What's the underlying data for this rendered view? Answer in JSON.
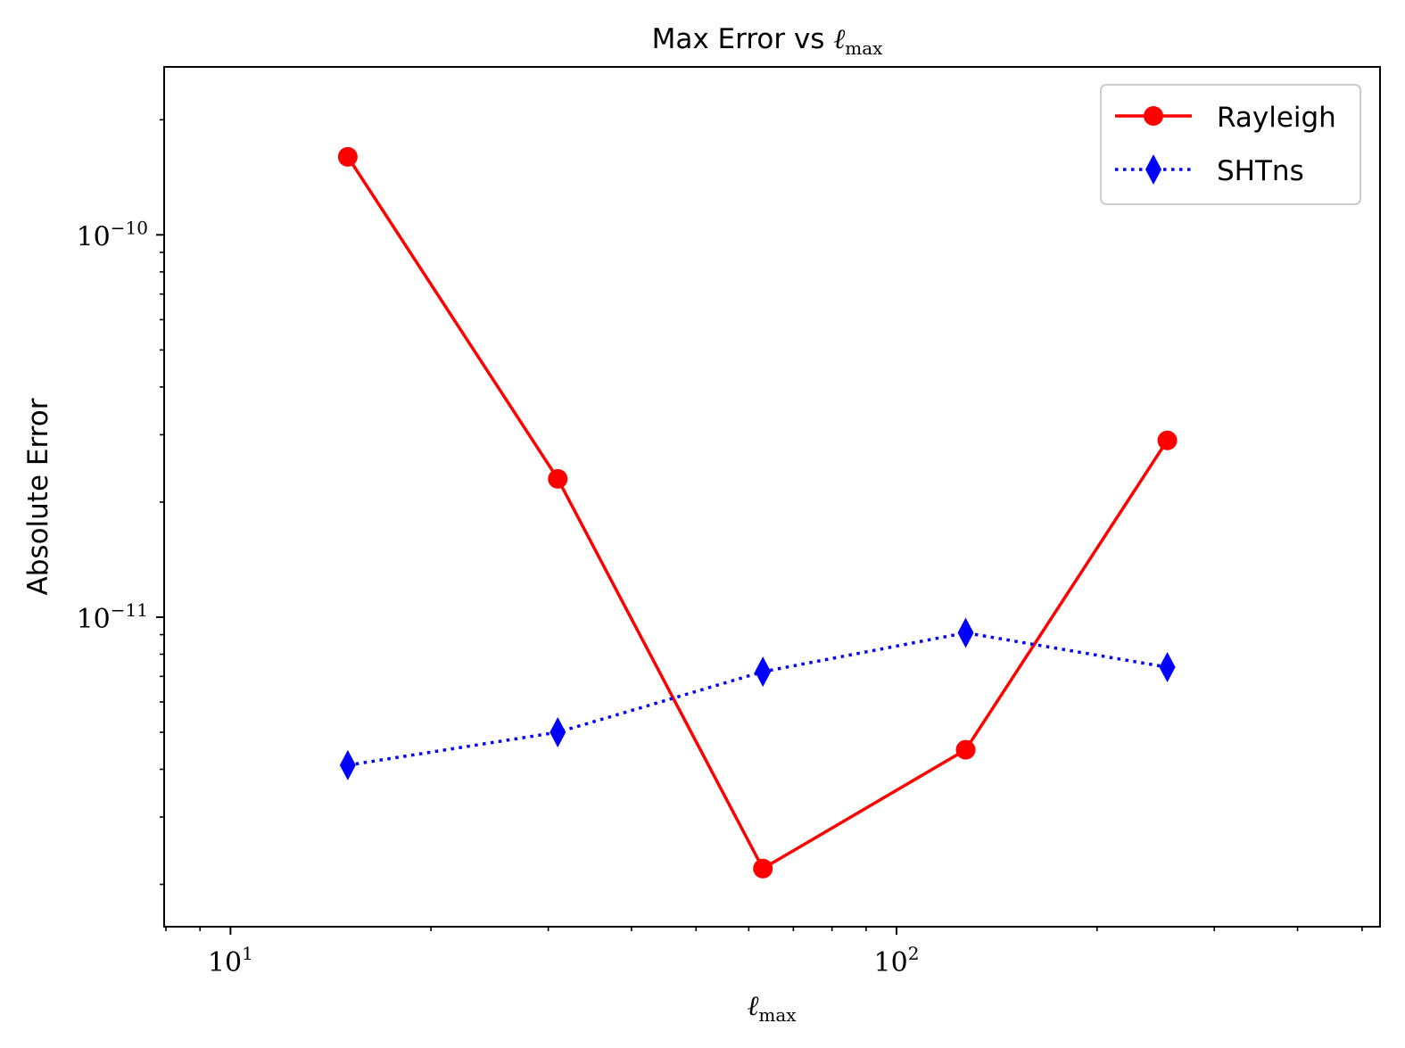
{
  "chart_data": {
    "type": "line",
    "title_text": "Max Error vs ",
    "title_math_base": "ℓ",
    "title_math_sub": "max",
    "xlabel_base": "ℓ",
    "xlabel_sub": "max",
    "ylabel": "Absolute Error",
    "xscale": "log",
    "yscale": "log",
    "xlim": [
      7.95,
      532
    ],
    "ylim": [
      1.55e-12,
      2.75e-10
    ],
    "x_ticks": [
      {
        "value": 10,
        "base": "10",
        "exp": "1"
      },
      {
        "value": 100,
        "base": "10",
        "exp": "2"
      }
    ],
    "y_ticks": [
      {
        "value": 1e-10,
        "base": "10",
        "exp": "−10"
      },
      {
        "value": 1e-11,
        "base": "10",
        "exp": "−11"
      }
    ],
    "grid": false,
    "legend_position": "top-right",
    "series": [
      {
        "name": "Rayleigh",
        "color": "#ff0000",
        "linestyle": "solid",
        "marker": "circle",
        "x": [
          15,
          31,
          63,
          127,
          255
        ],
        "y": [
          1.6e-10,
          2.3e-11,
          2.2e-12,
          4.5e-12,
          2.9e-11
        ]
      },
      {
        "name": "SHTns",
        "color": "#0000ff",
        "linestyle": "dotted",
        "marker": "thin_diamond",
        "x": [
          15,
          31,
          63,
          127,
          255
        ],
        "y": [
          4.1e-12,
          5e-12,
          7.2e-12,
          9.1e-12,
          7.4e-12
        ]
      }
    ]
  }
}
